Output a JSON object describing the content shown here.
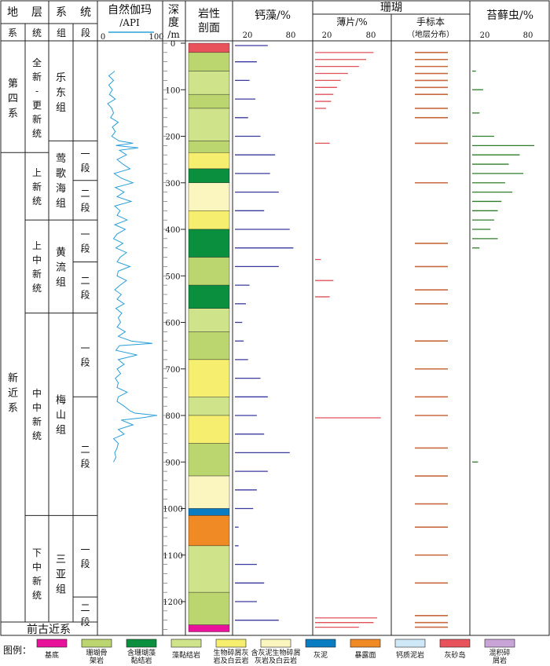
{
  "headers": {
    "strat": [
      "地",
      "层",
      "系",
      "统"
    ],
    "sub": [
      "系",
      "统",
      "组",
      "段"
    ],
    "gamma_title": "自然伽玛",
    "gamma_unit": "/API",
    "gamma_ticks": [
      "0",
      "100"
    ],
    "depth": [
      "深",
      "度",
      "/m"
    ],
    "litho": [
      "岩性",
      "剖面"
    ],
    "calc_algae": "钙藻/%",
    "coral": "珊瑚",
    "thin_section": "薄片/%",
    "hand_specimen": "手标本",
    "hand_specimen_sub": "（地层分布）",
    "bryozoa": "苔藓虫/%",
    "pct_ticks": [
      "20",
      "80"
    ]
  },
  "systems": [
    {
      "name": "第四系",
      "top": 0,
      "bottom": 235
    },
    {
      "name": "新近系",
      "top": 235,
      "bottom": 1265
    }
  ],
  "series": [
    {
      "name": "全新-更新统",
      "top": 0,
      "bottom": 235
    },
    {
      "name": "上新统",
      "top": 235,
      "bottom": 380
    },
    {
      "name": "上中新统",
      "top": 380,
      "bottom": 580
    },
    {
      "name": "中中新统",
      "top": 580,
      "bottom": 1015
    },
    {
      "name": "下中新统",
      "top": 1015,
      "bottom": 1265
    }
  ],
  "formations": [
    {
      "name": "乐东组",
      "top": 0,
      "bottom": 210
    },
    {
      "name": "莺歌海组",
      "top": 210,
      "bottom": 380
    },
    {
      "name": "黄流组",
      "top": 380,
      "bottom": 580
    },
    {
      "name": "梅山组",
      "top": 580,
      "bottom": 1015
    },
    {
      "name": "三亚组",
      "top": 1015,
      "bottom": 1265
    }
  ],
  "members": [
    {
      "name": "一段",
      "top": 210,
      "bottom": 295
    },
    {
      "name": "二段",
      "top": 295,
      "bottom": 380
    },
    {
      "name": "一段",
      "top": 380,
      "bottom": 470
    },
    {
      "name": "二段",
      "top": 470,
      "bottom": 580
    },
    {
      "name": "一段",
      "top": 580,
      "bottom": 760
    },
    {
      "name": "二段",
      "top": 760,
      "bottom": 1015
    },
    {
      "name": "一段",
      "top": 1015,
      "bottom": 1190
    },
    {
      "name": "二段",
      "top": 1190,
      "bottom": 1265
    }
  ],
  "pre_paleogene": "前古近系",
  "legend_title": "图例：",
  "legend": [
    {
      "label": "基底",
      "color": "#e8139a"
    },
    {
      "label": "珊瑚骨架岩",
      "color": "#bcd66f"
    },
    {
      "label": "含珊瑚藻黏结岩",
      "color": "#0a8f3e"
    },
    {
      "label": "藻黏结岩",
      "color": "#cfe38b"
    },
    {
      "label": "生物碎屑灰岩及白云岩",
      "color": "#f5ee6e"
    },
    {
      "label": "含灰泥生物碎屑灰岩及白云岩",
      "color": "#fbf6c0"
    },
    {
      "label": "灰泥",
      "color": "#0a7cc2"
    },
    {
      "label": "暴露面",
      "color": "#f08a24"
    },
    {
      "label": "钙质泥岩",
      "color": "#cfe8f7"
    },
    {
      "label": "灰砂岛",
      "color": "#e8525a"
    },
    {
      "label": "混积碎屑岩",
      "color": "#c9a4d6"
    }
  ],
  "chart_data": {
    "type": "well-log",
    "depth_axis": {
      "label": "深度/m",
      "ticks": [
        0,
        100,
        200,
        300,
        400,
        500,
        600,
        700,
        800,
        900,
        1000,
        1100,
        1200
      ],
      "range": [
        0,
        1265
      ]
    },
    "gamma_ray": {
      "name": "自然伽玛/API",
      "range": [
        0,
        100
      ],
      "color": "#2a9fd8",
      "depth": [
        60,
        70,
        80,
        90,
        100,
        110,
        120,
        130,
        140,
        150,
        160,
        170,
        180,
        190,
        200,
        210,
        215,
        220,
        225,
        230,
        240,
        250,
        260,
        270,
        280,
        290,
        300,
        310,
        320,
        330,
        340,
        350,
        360,
        370,
        380,
        390,
        400,
        410,
        420,
        430,
        440,
        450,
        460,
        470,
        480,
        490,
        500,
        510,
        520,
        530,
        540,
        550,
        560,
        570,
        580,
        590,
        600,
        610,
        620,
        630,
        640,
        645,
        650,
        660,
        670,
        680,
        690,
        700,
        710,
        720,
        730,
        740,
        750,
        760,
        770,
        780,
        790,
        795,
        800,
        805,
        810,
        820,
        830,
        840,
        850,
        860,
        870,
        880,
        890,
        900
      ],
      "value": [
        24,
        14,
        22,
        14,
        20,
        15,
        25,
        12,
        19,
        22,
        17,
        30,
        20,
        25,
        19,
        31,
        55,
        26,
        64,
        32,
        44,
        28,
        38,
        50,
        23,
        35,
        55,
        25,
        40,
        28,
        52,
        24,
        33,
        28,
        45,
        24,
        42,
        28,
        22,
        38,
        26,
        44,
        33,
        28,
        50,
        30,
        28,
        44,
        33,
        24,
        35,
        28,
        40,
        26,
        36,
        30,
        34,
        28,
        42,
        30,
        52,
        88,
        32,
        26,
        62,
        30,
        40,
        28,
        34,
        25,
        30,
        28,
        45,
        30,
        28,
        40,
        50,
        58,
        96,
        70,
        35,
        55,
        30,
        40,
        22,
        30,
        28,
        24,
        26,
        22
      ]
    },
    "calcareous_algae": {
      "name": "钙藻/%",
      "range": [
        0,
        100
      ],
      "color": "#3a3a9e",
      "depth": [
        5,
        40,
        80,
        120,
        160,
        200,
        240,
        280,
        320,
        360,
        400,
        440,
        480,
        520,
        560,
        600,
        640,
        680,
        720,
        760,
        800,
        840,
        880,
        920,
        960,
        1000,
        1040,
        1080,
        1120,
        1160,
        1200,
        1240
      ],
      "value": [
        45,
        30,
        20,
        28,
        18,
        35,
        55,
        48,
        60,
        40,
        75,
        80,
        60,
        20,
        15,
        10,
        12,
        18,
        35,
        45,
        30,
        40,
        75,
        45,
        30,
        25,
        5,
        5,
        30,
        40,
        30,
        60
      ]
    },
    "coral_thin_section": {
      "name": "薄片/%",
      "range": [
        0,
        100
      ],
      "color": "#e0505a",
      "depth": [
        20,
        35,
        50,
        65,
        80,
        95,
        110,
        125,
        140,
        215,
        465,
        510,
        545,
        805,
        1235,
        1245,
        1255
      ],
      "value": [
        80,
        70,
        60,
        45,
        35,
        30,
        25,
        22,
        15,
        20,
        8,
        25,
        20,
        90,
        85,
        80,
        60
      ]
    },
    "coral_hand_specimen": {
      "name": "手标本（地层分布）",
      "color": "#c86a40",
      "depth": [
        20,
        35,
        50,
        65,
        80,
        95,
        110,
        140,
        160,
        215,
        300,
        430,
        480,
        530,
        560,
        640,
        700,
        760,
        800,
        870,
        930,
        990,
        1040,
        1100,
        1160,
        1230,
        1245,
        1255
      ]
    },
    "bryozoa": {
      "name": "苔藓虫/%",
      "range": [
        0,
        100
      ],
      "color": "#2f7d2a",
      "depth": [
        60,
        100,
        150,
        200,
        220,
        240,
        260,
        280,
        300,
        320,
        340,
        360,
        380,
        400,
        420,
        440,
        900
      ],
      "value": [
        5,
        15,
        10,
        30,
        85,
        65,
        50,
        70,
        45,
        55,
        40,
        35,
        30,
        25,
        35,
        10,
        8
      ]
    }
  }
}
